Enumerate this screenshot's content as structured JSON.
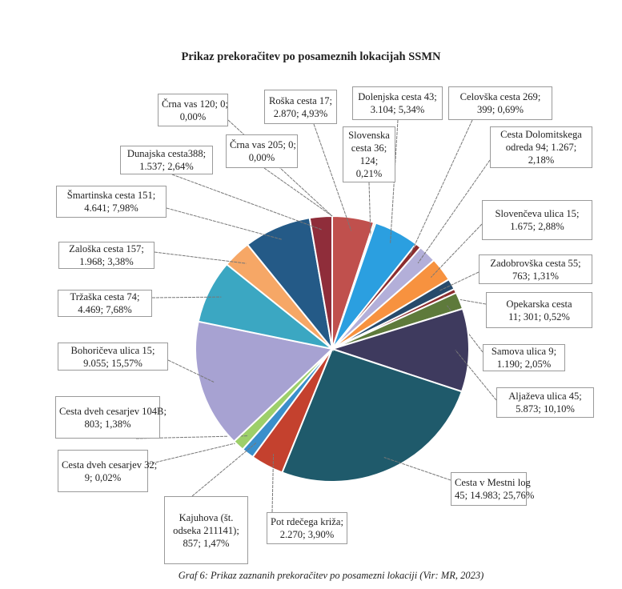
{
  "chart_data": {
    "type": "pie",
    "title": "Prikaz prekoračitev po posameznih lokacijah SSMN",
    "caption": "Graf 6: Prikaz zaznanih prekoračitev po posamezni lokaciji (Vir: MR, 2023)",
    "start": "top",
    "direction": "clockwise",
    "slices": [
      {
        "name": "Roška cesta 17",
        "value": 2870,
        "percent": "4,93%",
        "color": "#c0504d",
        "label_lines": [
          "Roška cesta 17;",
          "2.870; 4,93%"
        ]
      },
      {
        "name": "Slovenska cesta 36",
        "value": 124,
        "percent": "0,21%",
        "color": "#9bbb59",
        "label_lines": [
          "Slovenska",
          "cesta 36;",
          "124;",
          "0,21%"
        ]
      },
      {
        "name": "Dolenjska cesta 43",
        "value": 3104,
        "percent": "5,34%",
        "color": "#2b9fe0",
        "label_lines": [
          "Dolenjska cesta 43;",
          "3.104; 5,34%"
        ]
      },
      {
        "name": "Celovška cesta 269",
        "value": 399,
        "percent": "0,69%",
        "color": "#8c2d2f",
        "label_lines": [
          "Celovška cesta 269;",
          "399; 0,69%"
        ]
      },
      {
        "name": "Cesta Dolomitskega odreda 94",
        "value": 1267,
        "percent": "2,18%",
        "color": "#b3afd9",
        "label_lines": [
          "Cesta Dolomitskega",
          "odreda 94; 1.267;",
          "2,18%"
        ]
      },
      {
        "name": "Slovenčeva ulica 15",
        "value": 1675,
        "percent": "2,88%",
        "color": "#f7923f",
        "label_lines": [
          "Slovenčeva ulica 15;",
          "1.675; 2,88%"
        ]
      },
      {
        "name": "Zadobrovška cesta 55",
        "value": 763,
        "percent": "1,31%",
        "color": "#274a6b",
        "label_lines": [
          "Zadobrovška cesta 55;",
          "763; 1,31%"
        ]
      },
      {
        "name": "Opekarska cesta 11",
        "value": 301,
        "percent": "0,52%",
        "color": "#8c2d2f",
        "label_lines": [
          "Opekarska cesta",
          "11; 301; 0,52%"
        ]
      },
      {
        "name": "Samova ulica 9",
        "value": 1190,
        "percent": "2,05%",
        "color": "#5e7a3b",
        "label_lines": [
          "Samova ulica 9;",
          "1.190; 2,05%"
        ]
      },
      {
        "name": "Aljaževa ulica 45",
        "value": 5873,
        "percent": "10,10%",
        "color": "#3e3a5e",
        "label_lines": [
          "Aljaževa ulica 45;",
          "5.873; 10,10%"
        ]
      },
      {
        "name": "Cesta v Mestni log 45",
        "value": 14983,
        "percent": "25,76%",
        "color": "#1f5a6b",
        "label_lines": [
          "Cesta v Mestni log",
          "45; 14.983; 25,76%"
        ]
      },
      {
        "name": "Pot rdečega križa",
        "value": 2270,
        "percent": "3,90%",
        "color": "#c4412e",
        "label_lines": [
          "Pot rdečega križa;",
          "2.270; 3,90%"
        ]
      },
      {
        "name": "Kajuhova (št. odseka 211141)",
        "value": 857,
        "percent": "1,47%",
        "color": "#3a8fcb",
        "label_lines": [
          "Kajuhova (št.",
          "odseka 211141);",
          "857; 1,47%"
        ]
      },
      {
        "name": "Cesta dveh cesarjev 32",
        "value": 9,
        "percent": "0,02%",
        "color": "#b85a4e",
        "label_lines": [
          "Cesta dveh cesarjev 32;",
          "9; 0,02%"
        ]
      },
      {
        "name": "Cesta dveh cesarjev 104B",
        "value": 803,
        "percent": "1,38%",
        "color": "#9dcf6a",
        "label_lines": [
          "Cesta dveh cesarjev 104B;",
          "803; 1,38%"
        ]
      },
      {
        "name": "Bohoričeva ulica 15",
        "value": 9055,
        "percent": "15,57%",
        "color": "#a7a2d2",
        "label_lines": [
          "Bohoričeva ulica 15;",
          "9.055; 15,57%"
        ]
      },
      {
        "name": "Tržaška cesta 74",
        "value": 4469,
        "percent": "7,68%",
        "color": "#3ba7c2",
        "label_lines": [
          "Tržaška cesta 74;",
          "4.469; 7,68%"
        ]
      },
      {
        "name": "Zaloška cesta 157",
        "value": 1968,
        "percent": "3,38%",
        "color": "#f6a766",
        "label_lines": [
          "Zaloška cesta 157;",
          "1.968; 3,38%"
        ]
      },
      {
        "name": "Šmartinska cesta 151",
        "value": 4641,
        "percent": "7,98%",
        "color": "#245a87",
        "label_lines": [
          "Šmartinska cesta 151;",
          "4.641; 7,98%"
        ]
      },
      {
        "name": "Dunajska cesta 388",
        "value": 1537,
        "percent": "2,64%",
        "color": "#8f2d3a",
        "label_lines": [
          "Dunajska cesta388;",
          "1.537; 2,64%"
        ]
      },
      {
        "name": "Črna vas 205",
        "value": 0,
        "percent": "0,00%",
        "color": "#999999",
        "label_lines": [
          "Črna vas 205; 0;",
          "0,00%"
        ]
      },
      {
        "name": "Črna vas 120",
        "value": 0,
        "percent": "0,00%",
        "color": "#999999",
        "label_lines": [
          "Črna vas 120; 0;",
          "0,00%"
        ]
      }
    ]
  }
}
